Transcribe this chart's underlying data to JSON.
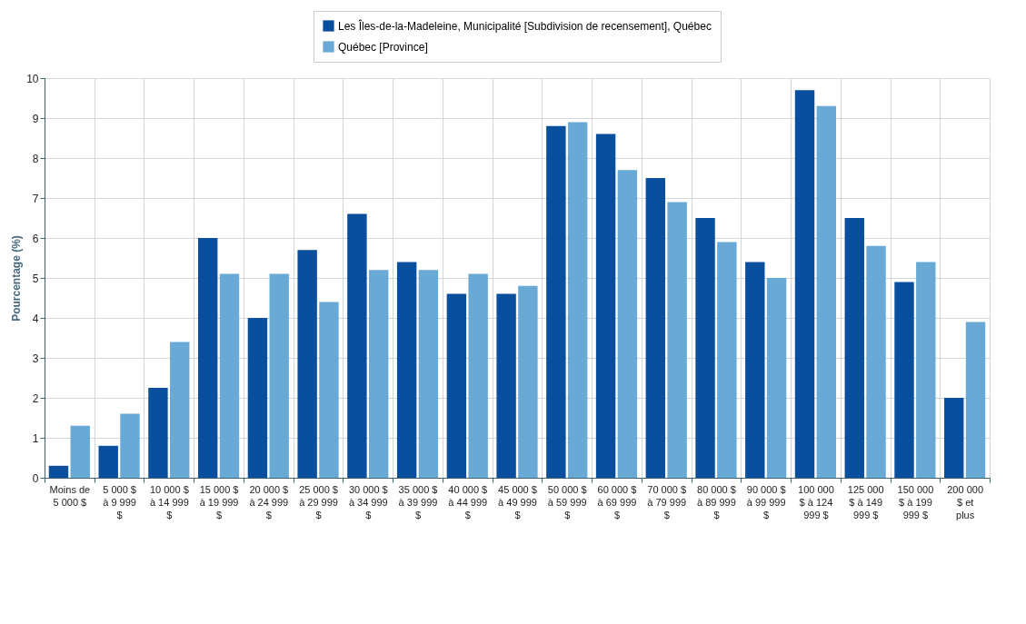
{
  "chart_data": {
    "type": "bar",
    "ylabel": "Pourcentage (%)",
    "categories": [
      "Moins de 5 000 $",
      "5 000 $ à 9 999 $",
      "10 000 $ à 14 999 $",
      "15 000 $ à 19 999 $",
      "20 000 $ à 24 999 $",
      "25 000 $ à 29 999 $",
      "30 000 $ à 34 999 $",
      "35 000 $ à 39 999 $",
      "40 000 $ à 44 999 $",
      "45 000 $ à 49 999 $",
      "50 000 $ à 59 999 $",
      "60 000 $ à 69 999 $",
      "70 000 $ à 79 999 $",
      "80 000 $ à 89 999 $",
      "90 000 $ à 99 999 $",
      "100 000 $ à 124 999 $",
      "125 000 $ à 149 999 $",
      "150 000 $ à 199 999 $",
      "200 000 $ et plus"
    ],
    "series": [
      {
        "name": "Les Îles-de-la-Madeleine, Municipalité [Subdivision de recensement], Québec",
        "color": "#0a4f9e",
        "values": [
          0.3,
          0.8,
          2.25,
          6.0,
          4.0,
          5.7,
          6.6,
          5.4,
          4.6,
          4.6,
          8.8,
          8.6,
          7.5,
          6.5,
          5.4,
          9.7,
          6.5,
          4.9,
          2.0
        ]
      },
      {
        "name": "Québec [Province]",
        "color": "#68a9d5",
        "values": [
          1.3,
          1.6,
          3.4,
          5.1,
          5.1,
          4.4,
          5.2,
          5.2,
          5.1,
          4.8,
          8.9,
          7.7,
          6.9,
          5.9,
          5.0,
          9.3,
          5.8,
          5.4,
          3.9
        ]
      }
    ],
    "ylim": [
      0,
      10
    ],
    "yticks": [
      0,
      1,
      2,
      3,
      4,
      5,
      6,
      7,
      8,
      9,
      10
    ],
    "grid": true,
    "legend": "top"
  }
}
